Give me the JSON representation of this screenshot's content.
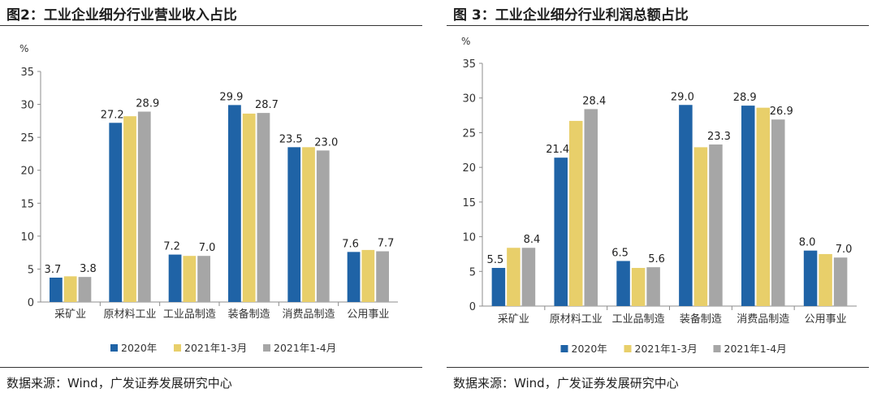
{
  "source_text": "数据来源：Wind，广发证券发展研究中心",
  "chart_data": [
    {
      "type": "bar",
      "title": "图2：工业企业细分行业营业收入占比",
      "ylabel": "%",
      "ylim": [
        0,
        35
      ],
      "yticks": [
        0,
        5,
        10,
        15,
        20,
        25,
        30,
        35
      ],
      "categories": [
        "采矿业",
        "原材料工业",
        "工业品制造",
        "装备制造",
        "消费品制造",
        "公用事业"
      ],
      "series": [
        {
          "name": "2020年",
          "color": "#1f63a6",
          "values": [
            3.7,
            27.2,
            7.2,
            29.9,
            23.5,
            7.6
          ]
        },
        {
          "name": "2021年1-3月",
          "color": "#e8cf6a",
          "values": [
            3.9,
            28.2,
            7.0,
            28.6,
            23.5,
            7.9
          ]
        },
        {
          "name": "2021年1-4月",
          "color": "#a6a6a6",
          "values": [
            3.8,
            28.9,
            7.0,
            28.7,
            23.0,
            7.7
          ]
        }
      ],
      "data_labels": [
        {
          "category": 0,
          "series": 0,
          "text": "3.7"
        },
        {
          "category": 0,
          "series": 2,
          "text": "3.8"
        },
        {
          "category": 1,
          "series": 0,
          "text": "27.2"
        },
        {
          "category": 1,
          "series": 2,
          "text": "28.9"
        },
        {
          "category": 2,
          "series": 0,
          "text": "7.2"
        },
        {
          "category": 2,
          "series": 2,
          "text": "7.0"
        },
        {
          "category": 3,
          "series": 0,
          "text": "29.9"
        },
        {
          "category": 3,
          "series": 2,
          "text": "28.7"
        },
        {
          "category": 4,
          "series": 0,
          "text": "23.5"
        },
        {
          "category": 4,
          "series": 2,
          "text": "23.0"
        },
        {
          "category": 5,
          "series": 0,
          "text": "7.6"
        },
        {
          "category": 5,
          "series": 2,
          "text": "7.7"
        }
      ],
      "legend_position": "bottom"
    },
    {
      "type": "bar",
      "title": "图 3：工业企业细分行业利润总额占比",
      "ylabel": "%",
      "ylim": [
        0,
        35
      ],
      "yticks": [
        0,
        5,
        10,
        15,
        20,
        25,
        30,
        35
      ],
      "categories": [
        "采矿业",
        "原材料工业",
        "工业品制造",
        "装备制造",
        "消费品制造",
        "公用事业"
      ],
      "series": [
        {
          "name": "2020年",
          "color": "#1f63a6",
          "values": [
            5.5,
            21.4,
            6.5,
            29.0,
            28.9,
            8.0
          ]
        },
        {
          "name": "2021年1-3月",
          "color": "#e8cf6a",
          "values": [
            8.4,
            26.7,
            5.5,
            22.9,
            28.6,
            7.5
          ]
        },
        {
          "name": "2021年1-4月",
          "color": "#a6a6a6",
          "values": [
            8.4,
            28.4,
            5.6,
            23.3,
            26.9,
            7.0
          ]
        }
      ],
      "data_labels": [
        {
          "category": 0,
          "series": 0,
          "text": "5.5"
        },
        {
          "category": 0,
          "series": 2,
          "text": "8.4"
        },
        {
          "category": 1,
          "series": 0,
          "text": "21.4"
        },
        {
          "category": 1,
          "series": 2,
          "text": "28.4"
        },
        {
          "category": 2,
          "series": 0,
          "text": "6.5"
        },
        {
          "category": 2,
          "series": 2,
          "text": "5.6"
        },
        {
          "category": 3,
          "series": 0,
          "text": "29.0"
        },
        {
          "category": 3,
          "series": 2,
          "text": "23.3"
        },
        {
          "category": 4,
          "series": 0,
          "text": "28.9"
        },
        {
          "category": 4,
          "series": 2,
          "text": "26.9"
        },
        {
          "category": 5,
          "series": 0,
          "text": "8.0"
        },
        {
          "category": 5,
          "series": 2,
          "text": "7.0"
        }
      ],
      "legend_position": "bottom"
    }
  ]
}
